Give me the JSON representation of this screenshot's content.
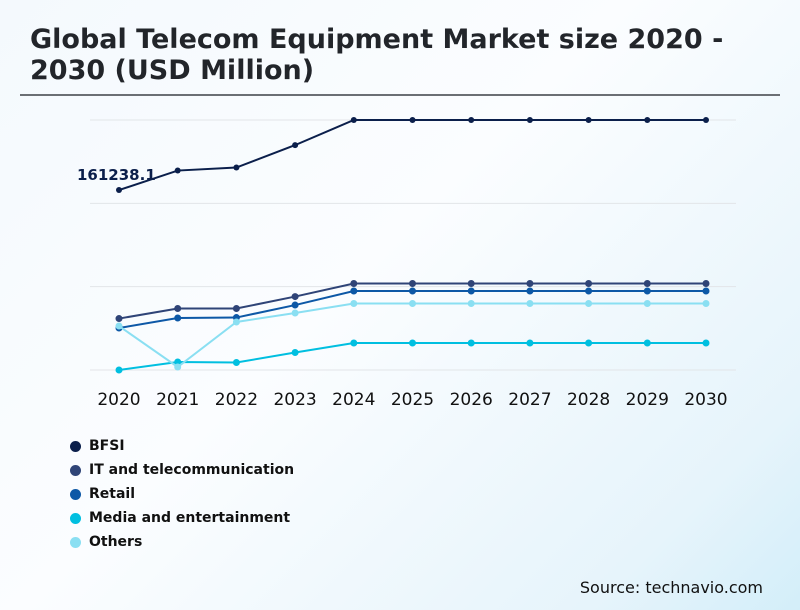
{
  "chart_data": {
    "type": "line",
    "title": "Global Telecom Equipment Market size 2020 - 2030 (USD Million)",
    "x": [
      "2020",
      "2021",
      "2022",
      "2023",
      "2024",
      "2025",
      "2026",
      "2027",
      "2028",
      "2029",
      "2030"
    ],
    "ylim": [
      0,
      224000
    ],
    "y_axis_labels_shown": false,
    "grid": true,
    "legend_placement": "bottom-left",
    "annotations": [
      {
        "series": "BFSI",
        "x": "2020",
        "text": "161238.1"
      }
    ],
    "series": [
      {
        "name": "BFSI",
        "color": "#0b1f4b",
        "values": [
          161238.1,
          178700,
          181400,
          201500,
          224000,
          224000,
          224000,
          224000,
          224000,
          224000,
          224000
        ]
      },
      {
        "name": "IT and telecommunication",
        "color": "#2f4477",
        "values": [
          46100,
          55100,
          55100,
          65800,
          77500,
          77500,
          77500,
          77500,
          77500,
          77500,
          77500
        ]
      },
      {
        "name": "Retail",
        "color": "#0d58a6",
        "values": [
          37600,
          46600,
          47000,
          58200,
          70800,
          70800,
          70800,
          70800,
          70800,
          70800,
          70800
        ]
      },
      {
        "name": "Media and entertainment",
        "color": "#00bfe0",
        "values": [
          0,
          7200,
          6700,
          15700,
          24200,
          24200,
          24200,
          24200,
          24200,
          24200,
          24200
        ]
      },
      {
        "name": "Others",
        "color": "#8adff2",
        "values": [
          39400,
          2700,
          43000,
          51100,
          59600,
          59600,
          59600,
          59600,
          59600,
          59600,
          59600
        ]
      }
    ]
  },
  "source": "Source: technavio.com"
}
